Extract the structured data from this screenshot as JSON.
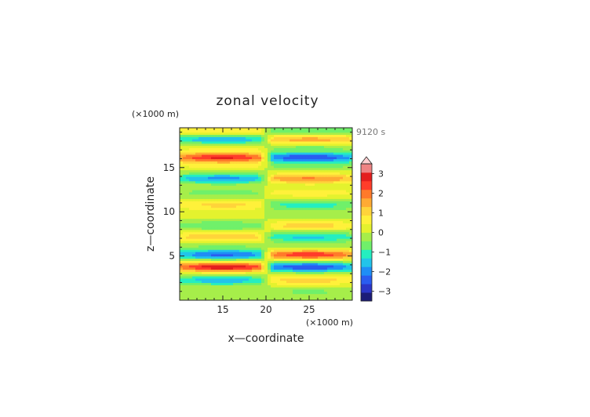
{
  "chart_data": {
    "type": "heatmap",
    "title": "zonal velocity",
    "xlabel": "x—coordinate",
    "ylabel": "z—coordinate",
    "x_unit": "(×1000 m)",
    "z_unit": "(×1000 m)",
    "time_label": "9120 s",
    "xlim": [
      10,
      30
    ],
    "ylim": [
      0,
      19.5
    ],
    "x_ticks": [
      15,
      20,
      25
    ],
    "y_ticks": [
      5,
      10,
      15
    ],
    "colorbar": {
      "ticks": [
        3,
        2,
        1,
        0,
        -1,
        -2,
        -3
      ],
      "range": [
        -3.5,
        3.5
      ],
      "extend": "max",
      "colors": [
        "#1c1c78",
        "#2b36c8",
        "#2a5cf0",
        "#1f8ef6",
        "#22c4ea",
        "#24eec0",
        "#70f06a",
        "#a6ee4a",
        "#e4f22e",
        "#fff13a",
        "#ffd43a",
        "#ffaa33",
        "#ff7a2a",
        "#ff3d2a",
        "#e41e1e",
        "#ee8383",
        "#ffcfd0"
      ]
    },
    "field_description": "Horizontally banded zonal velocity field (x 10-30, z 0-19.5) with sign reversal near x=20; left and right halves have opposite-sign bands.",
    "bands": [
      {
        "z": 1.0,
        "left": -0.3,
        "right": -0.5
      },
      {
        "z": 2.3,
        "left": -1.6,
        "right": 1.1
      },
      {
        "z": 3.8,
        "left": 3.0,
        "right": -2.6
      },
      {
        "z": 5.2,
        "left": -2.3,
        "right": 2.6
      },
      {
        "z": 6.2,
        "left": -0.4,
        "right": -0.3
      },
      {
        "z": 7.2,
        "left": 1.3,
        "right": -1.4
      },
      {
        "z": 8.5,
        "left": -0.9,
        "right": 1.1
      },
      {
        "z": 9.5,
        "left": 0.3,
        "right": -0.4
      },
      {
        "z": 10.8,
        "left": 1.0,
        "right": -1.1
      },
      {
        "z": 12.2,
        "left": -0.6,
        "right": 0.7
      },
      {
        "z": 13.8,
        "left": -1.9,
        "right": 1.8
      },
      {
        "z": 15.3,
        "left": 0.6,
        "right": -0.6
      },
      {
        "z": 16.2,
        "left": 2.7,
        "right": -2.6
      },
      {
        "z": 17.4,
        "left": 0.6,
        "right": -0.6
      },
      {
        "z": 18.2,
        "left": -1.8,
        "right": 1.6
      },
      {
        "z": 19.2,
        "left": 0.8,
        "right": -0.8
      }
    ]
  }
}
